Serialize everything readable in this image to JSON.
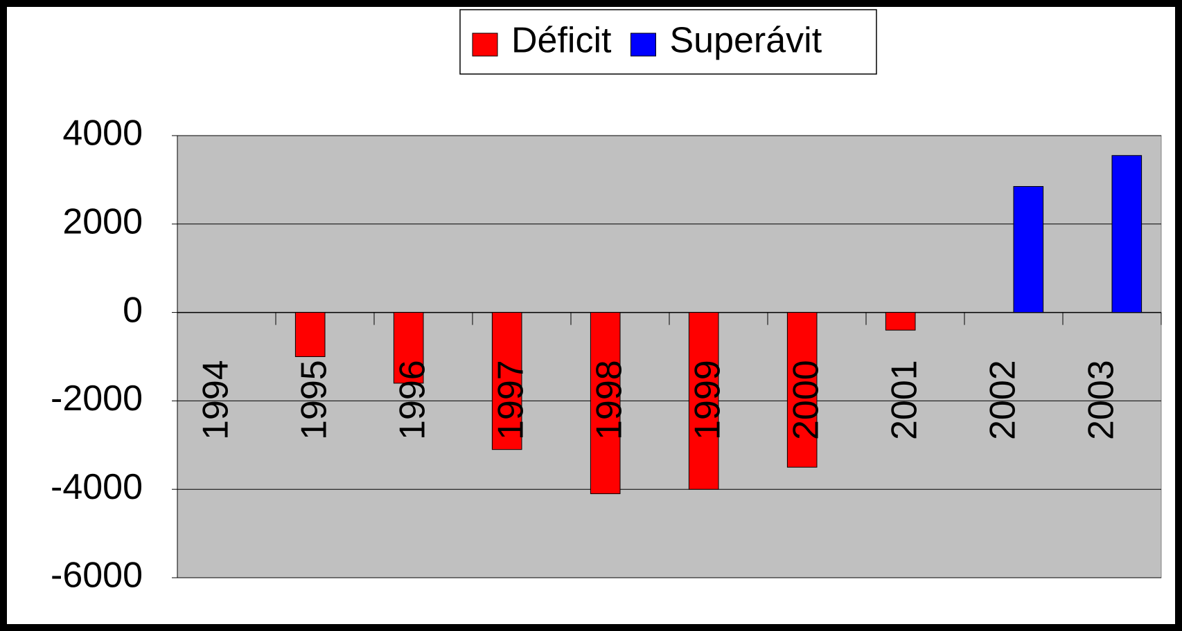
{
  "chart_data": {
    "type": "bar",
    "categories": [
      "1994",
      "1995",
      "1996",
      "1997",
      "1998",
      "1999",
      "2000",
      "2001",
      "2002",
      "2003"
    ],
    "series": [
      {
        "name": "Déficit",
        "color": "#ff0000",
        "values": [
          null,
          -1000,
          -1600,
          -3100,
          -4100,
          -4000,
          -3500,
          -400,
          null,
          null
        ]
      },
      {
        "name": "Superávit",
        "color": "#0000ff",
        "values": [
          null,
          null,
          null,
          null,
          null,
          null,
          null,
          null,
          2850,
          3550
        ]
      }
    ],
    "ylim": [
      -6000,
      4000
    ],
    "yticks": [
      -6000,
      -4000,
      -2000,
      0,
      2000,
      4000
    ],
    "grid": true,
    "legend": "top",
    "plot_background": "#c0c0c0"
  }
}
